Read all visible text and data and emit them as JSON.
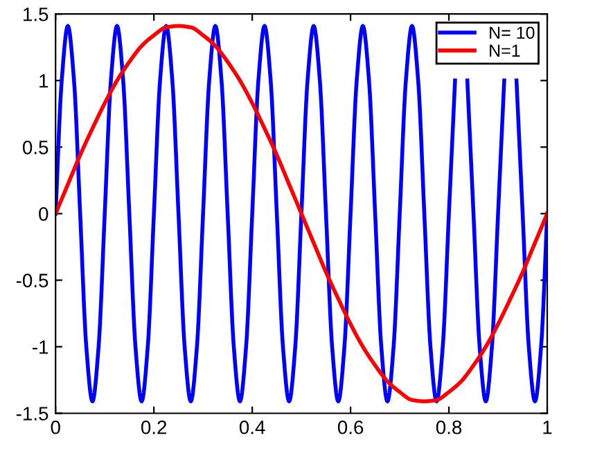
{
  "chart_data": {
    "type": "line",
    "xlim": [
      0,
      1
    ],
    "ylim": [
      -1.5,
      1.5
    ],
    "xticks": [
      0,
      0.2,
      0.4,
      0.6,
      0.8,
      1
    ],
    "yticks": [
      -1.5,
      -1,
      -0.5,
      0,
      0.5,
      1,
      1.5
    ],
    "grid": false,
    "legend": "top right",
    "marker": "none",
    "line_style": "solid",
    "series": [
      {
        "name": "N= 10",
        "color": "#0000ff",
        "x": [
          0,
          0.0125,
          0.025,
          0.0375,
          0.05,
          0.0625,
          0.075,
          0.0875,
          0.1,
          0.1125,
          0.125,
          0.1375,
          0.15,
          0.1625,
          0.175,
          0.1875,
          0.2,
          0.2125,
          0.225,
          0.2375,
          0.25,
          0.2625,
          0.275,
          0.2875,
          0.3,
          0.3125,
          0.325,
          0.3375,
          0.35,
          0.3625,
          0.375,
          0.3875,
          0.4,
          0.4125,
          0.425,
          0.4375,
          0.45,
          0.4625,
          0.475,
          0.4875,
          0.5,
          0.5125,
          0.525,
          0.5375,
          0.55,
          0.5625,
          0.575,
          0.5875,
          0.6,
          0.6125,
          0.625,
          0.6375,
          0.65,
          0.6625,
          0.675,
          0.6875,
          0.7,
          0.7125,
          0.725,
          0.7375,
          0.75,
          0.7625,
          0.775,
          0.7875,
          0.8,
          0.8125,
          0.825,
          0.8375,
          0.85,
          0.8625,
          0.875,
          0.8875,
          0.9,
          0.9125,
          0.925,
          0.9375,
          0.95,
          0.9625,
          0.975,
          0.9875,
          1
        ],
        "values": [
          0,
          1,
          1.41,
          1,
          0,
          -1,
          -1.41,
          -1,
          0,
          1,
          1.41,
          1,
          0,
          -1,
          -1.41,
          -1,
          0,
          1,
          1.41,
          1,
          0,
          -1,
          -1.41,
          -1,
          0,
          1,
          1.41,
          1,
          0,
          -1,
          -1.41,
          -1,
          0,
          1,
          1.41,
          1,
          0,
          -1,
          -1.41,
          -1,
          0,
          1,
          1.41,
          1,
          0,
          -1,
          -1.41,
          -1,
          0,
          1,
          1.41,
          1,
          0,
          -1,
          -1.41,
          -1,
          0,
          1,
          1.41,
          1,
          0,
          -1,
          -1.41,
          -1,
          0,
          1,
          null,
          1,
          0,
          -1,
          -1.41,
          -1,
          0,
          1,
          null,
          1,
          0,
          -1,
          -1.41,
          -1,
          0
        ]
      },
      {
        "name": "N=1",
        "color": "#ff0000",
        "x": [
          0,
          0.025,
          0.05,
          0.075,
          0.1,
          0.125,
          0.15,
          0.175,
          0.2,
          0.225,
          0.25,
          0.275,
          0.3,
          0.325,
          0.35,
          0.375,
          0.4,
          0.425,
          0.45,
          0.475,
          0.5,
          0.525,
          0.55,
          0.575,
          0.6,
          0.625,
          0.65,
          0.675,
          0.7,
          0.725,
          0.75,
          0.775,
          0.8,
          0.825,
          0.85,
          0.875,
          0.9,
          0.925,
          0.95,
          0.975,
          1
        ],
        "values": [
          0,
          0.22,
          0.44,
          0.64,
          0.83,
          1,
          1.14,
          1.26,
          1.34,
          1.4,
          1.41,
          1.4,
          1.34,
          1.26,
          1.14,
          1,
          0.83,
          0.64,
          0.44,
          0.22,
          0,
          -0.22,
          -0.44,
          -0.64,
          -0.83,
          -1,
          -1.14,
          -1.26,
          -1.34,
          -1.4,
          -1.41,
          -1.4,
          -1.34,
          -1.26,
          -1.14,
          -1,
          -0.83,
          -0.64,
          -0.44,
          -0.22,
          0
        ]
      }
    ]
  }
}
